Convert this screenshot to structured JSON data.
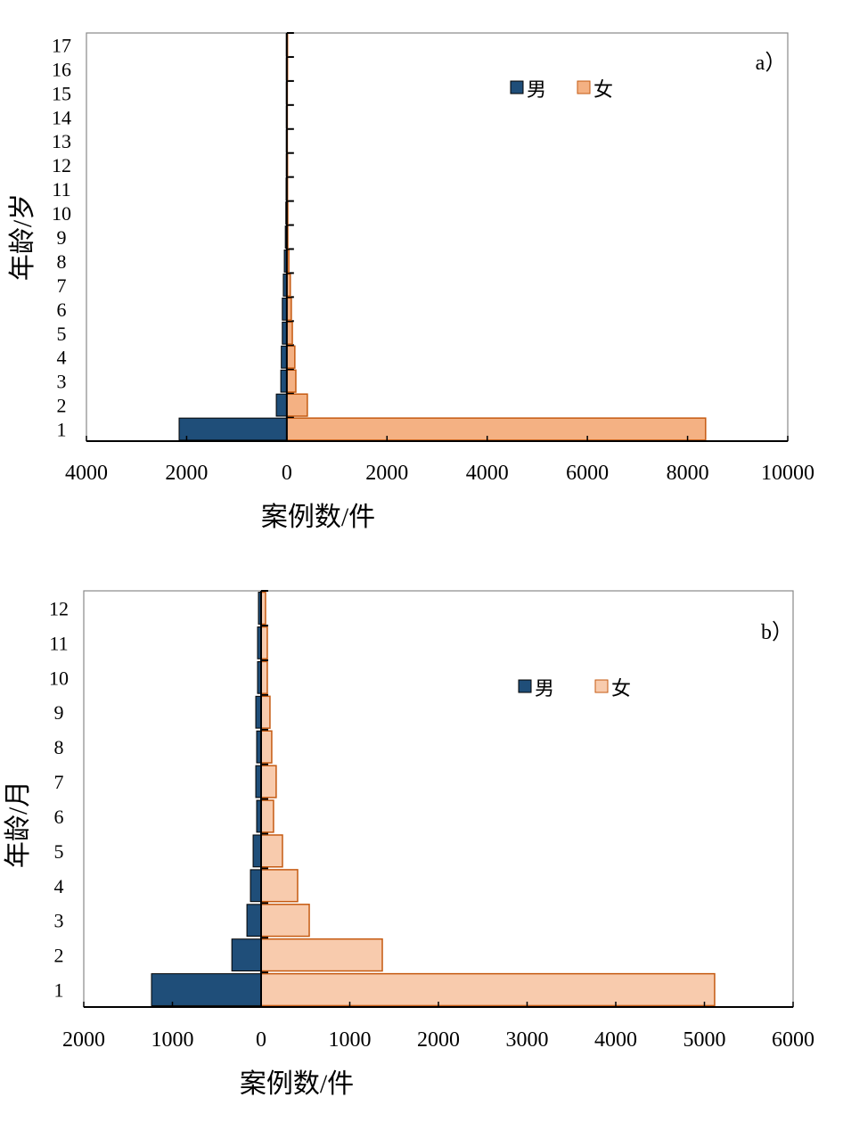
{
  "colors": {
    "male": "#1f4e79",
    "female_a": "#f4b183",
    "female_b": "#f8cbad",
    "female_stroke": "#c55a11"
  },
  "chart_data": [
    {
      "type": "bar",
      "orientation": "horizontal-population-pyramid",
      "panel_label": "a）",
      "ylabel": "年龄/岁",
      "xlabel": "案例数/件",
      "xlim": [
        -4000,
        10000
      ],
      "xticks": [
        -4000,
        -2000,
        0,
        2000,
        4000,
        6000,
        8000,
        10000
      ],
      "xtick_labels": [
        "4000",
        "2000",
        "0",
        "2000",
        "4000",
        "6000",
        "8000",
        "10000"
      ],
      "categories": [
        "1",
        "2",
        "3",
        "4",
        "5",
        "6",
        "7",
        "8",
        "9",
        "10",
        "11",
        "12",
        "13",
        "14",
        "15",
        "16",
        "17"
      ],
      "legend": {
        "position": "top-right",
        "entries": [
          "男",
          "女"
        ]
      },
      "series": [
        {
          "name": "男",
          "values": [
            2150,
            210,
            120,
            110,
            90,
            90,
            70,
            50,
            30,
            20,
            15,
            10,
            10,
            10,
            10,
            10,
            10
          ]
        },
        {
          "name": "女",
          "values": [
            8360,
            410,
            180,
            160,
            110,
            90,
            70,
            40,
            20,
            20,
            15,
            15,
            10,
            10,
            10,
            15,
            15
          ]
        }
      ]
    },
    {
      "type": "bar",
      "orientation": "horizontal-population-pyramid",
      "panel_label": "b）",
      "ylabel": "年龄/月",
      "xlabel": "案例数/件",
      "xlim": [
        -2000,
        6000
      ],
      "xticks": [
        -2000,
        -1000,
        0,
        1000,
        2000,
        3000,
        4000,
        5000,
        6000
      ],
      "xtick_labels": [
        "2000",
        "1000",
        "0",
        "1000",
        "2000",
        "3000",
        "4000",
        "5000",
        "6000"
      ],
      "categories": [
        "1",
        "2",
        "3",
        "4",
        "5",
        "6",
        "7",
        "8",
        "9",
        "10",
        "11",
        "12"
      ],
      "legend": {
        "position": "top-right",
        "entries": [
          "男",
          "女"
        ]
      },
      "series": [
        {
          "name": "男",
          "values": [
            1236,
            330,
            160,
            120,
            90,
            50,
            60,
            50,
            60,
            40,
            40,
            30
          ]
        },
        {
          "name": "女",
          "values": [
            5115,
            1367,
            543,
            412,
            241,
            140,
            170,
            120,
            100,
            70,
            70,
            50
          ]
        }
      ]
    }
  ]
}
